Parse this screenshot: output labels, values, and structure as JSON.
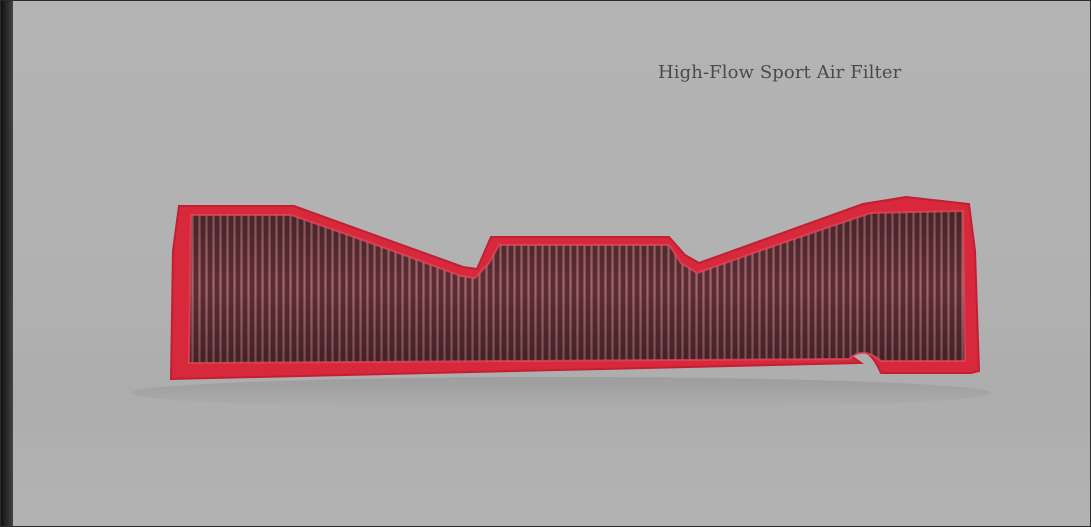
{
  "product": {
    "title": "High-Flow Sport Air Filter"
  },
  "colors": {
    "background": "#b2b2b2",
    "frame_rubber": "#d8283c",
    "filter_media": "#6a3a40",
    "title_text": "#4a4a4a"
  }
}
